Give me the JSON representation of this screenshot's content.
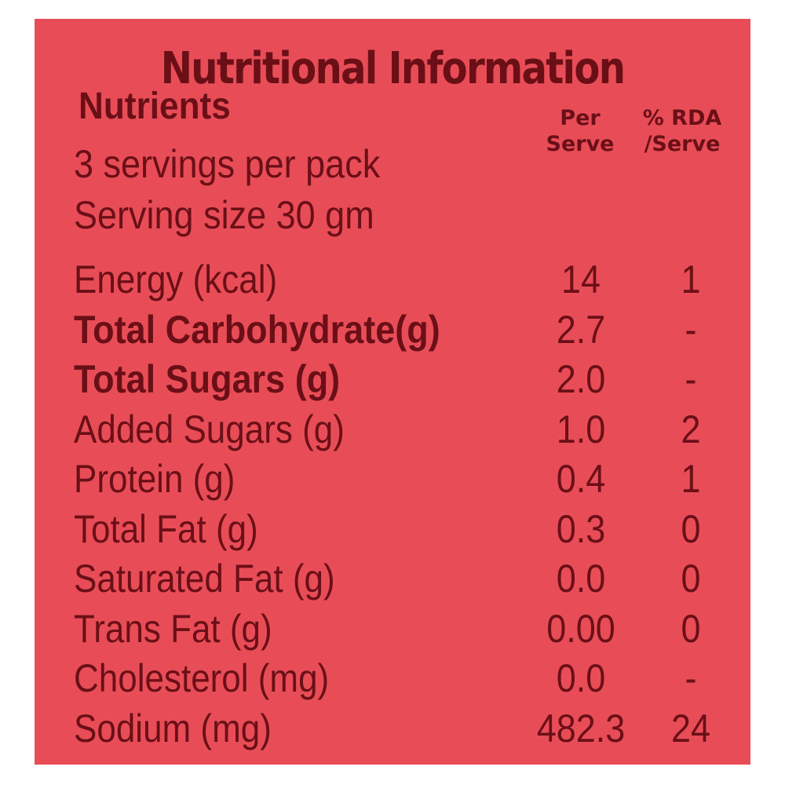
{
  "title": "Nutritional Information",
  "nutrients_heading": "Nutrients",
  "columns": {
    "per_serve_line1": "Per",
    "per_serve_line2": "Serve",
    "rda_line1": "% RDA",
    "rda_line2": "/Serve"
  },
  "servings_per_pack": "3 servings per pack",
  "serving_size": "Serving size 30 gm",
  "rows": [
    {
      "label": "Energy (kcal)",
      "per_serve": "14",
      "rda": "1",
      "bold": false
    },
    {
      "label": "Total Carbohydrate(g)",
      "per_serve": "2.7",
      "rda": "-",
      "bold": true
    },
    {
      "label": "Total Sugars (g)",
      "per_serve": "2.0",
      "rda": "-",
      "bold": true
    },
    {
      "label": "Added Sugars (g)",
      "per_serve": "1.0",
      "rda": "2",
      "bold": false
    },
    {
      "label": "Protein (g)",
      "per_serve": "0.4",
      "rda": "1",
      "bold": false
    },
    {
      "label": "Total Fat (g)",
      "per_serve": "0.3",
      "rda": "0",
      "bold": false
    },
    {
      "label": "Saturated Fat (g)",
      "per_serve": "0.0",
      "rda": "0",
      "bold": false
    },
    {
      "label": "Trans Fat (g)",
      "per_serve": "0.00",
      "rda": "0",
      "bold": false
    },
    {
      "label": "Cholesterol (mg)",
      "per_serve": "0.0",
      "rda": "-",
      "bold": false
    },
    {
      "label": "Sodium (mg)",
      "per_serve": "482.3",
      "rda": "24",
      "bold": false
    }
  ],
  "colors": {
    "panel_background": "#e84d57",
    "text": "#6b0f17",
    "page_background": "#ffffff"
  }
}
